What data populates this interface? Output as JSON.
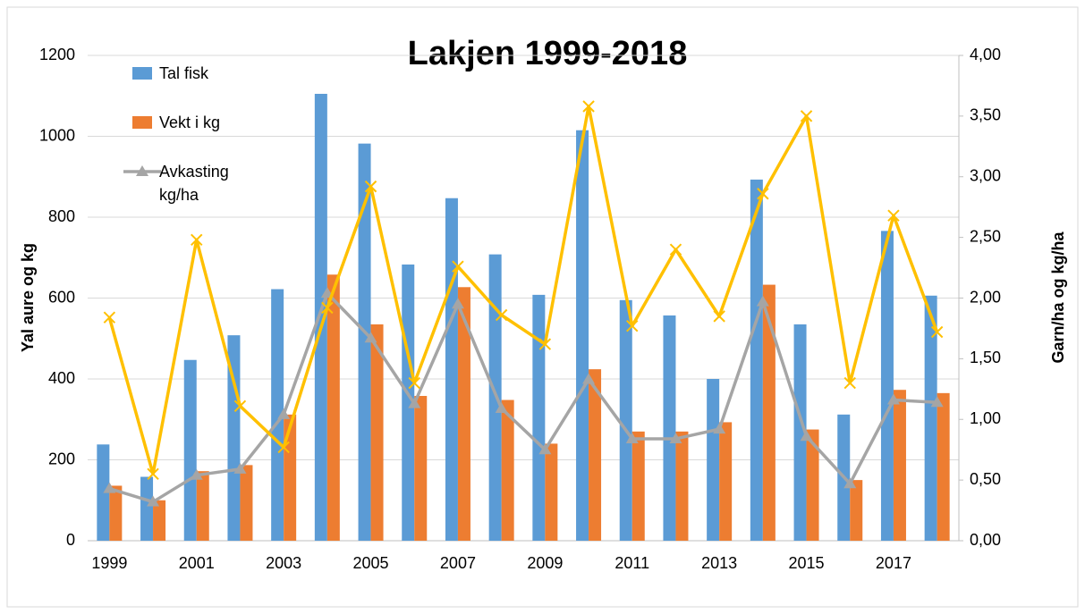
{
  "chart_data": {
    "type": "bar",
    "title": "Lakjen 1999-2018",
    "y_label": "Yal aure og kg",
    "y2_label": "Garn/ha og kg/ha",
    "categories": [
      "1999",
      null,
      "2001",
      null,
      "2003",
      null,
      "2005",
      null,
      "2007",
      null,
      "2009",
      null,
      "2011",
      null,
      "2013",
      null,
      "2015",
      null,
      "2017",
      null
    ],
    "ylim": [
      0,
      1200
    ],
    "yticks": [
      0,
      200,
      400,
      600,
      800,
      1000,
      1200
    ],
    "y2lim": [
      0,
      4
    ],
    "y2ticks": [
      {
        "value": 0,
        "label": "0,00"
      },
      {
        "value": 0.5,
        "label": "0,50"
      },
      {
        "value": 1,
        "label": "1,00"
      },
      {
        "value": 1.5,
        "label": "1,50"
      },
      {
        "value": 2,
        "label": "2,00"
      },
      {
        "value": 2.5,
        "label": "2,50"
      },
      {
        "value": 3,
        "label": "3,00"
      },
      {
        "value": 3.5,
        "label": "3,50"
      },
      {
        "value": 4,
        "label": "4,00"
      }
    ],
    "grid": true,
    "legend": "top-left",
    "series": [
      {
        "name": "Tal fisk",
        "type": "bar",
        "color": "#5b9bd5",
        "values": [
          238,
          158,
          447,
          508,
          622,
          1105,
          982,
          683,
          847,
          708,
          608,
          1015,
          595,
          557,
          400,
          893,
          535,
          312,
          766,
          606
        ]
      },
      {
        "name": "Vekt i kg",
        "type": "bar",
        "color": "#ed7d31",
        "values": [
          136,
          100,
          172,
          187,
          312,
          658,
          535,
          358,
          627,
          348,
          240,
          424,
          270,
          270,
          293,
          633,
          275,
          150,
          373,
          365
        ]
      },
      {
        "name": "Avkasting kg/ha",
        "type": "line",
        "axis": "y2",
        "color": "#a5a5a5",
        "marker": "triangle",
        "values": [
          0.43,
          0.32,
          0.54,
          0.59,
          1.04,
          2.04,
          1.67,
          1.13,
          1.95,
          1.09,
          0.75,
          1.33,
          0.84,
          0.84,
          0.92,
          1.97,
          0.86,
          0.47,
          1.16,
          1.14
        ]
      },
      {
        "type": "line",
        "axis": "y2",
        "color": "#ffc000",
        "marker": "x",
        "values": [
          1.84,
          0.55,
          2.48,
          1.11,
          0.77,
          1.92,
          2.92,
          1.3,
          2.26,
          1.86,
          1.62,
          3.58,
          1.77,
          2.4,
          1.85,
          2.86,
          3.5,
          1.3,
          2.68,
          1.72
        ]
      }
    ]
  }
}
